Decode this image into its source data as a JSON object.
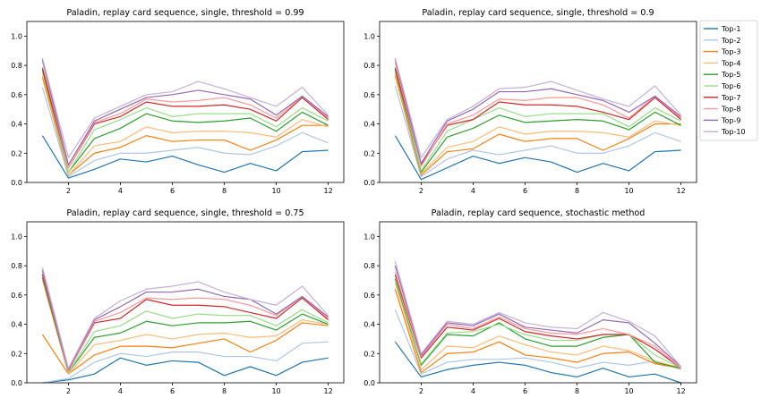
{
  "chart_data": [
    {
      "type": "line",
      "title": "Paladin, replay card sequence, single, threshold = 0.99",
      "x": [
        1,
        2,
        3,
        4,
        5,
        6,
        7,
        8,
        9,
        10,
        11,
        12
      ],
      "xticks": [
        2,
        4,
        6,
        8,
        10,
        12
      ],
      "yticks": [
        0.0,
        0.2,
        0.4,
        0.6,
        0.8,
        1.0
      ],
      "xlim": [
        0.4,
        12.6
      ],
      "ylim": [
        0.0,
        1.1
      ],
      "series": [
        {
          "name": "Top-1",
          "values": [
            0.32,
            0.03,
            0.09,
            0.16,
            0.14,
            0.18,
            0.12,
            0.07,
            0.13,
            0.08,
            0.21,
            0.22
          ]
        },
        {
          "name": "Top-2",
          "values": [
            0.65,
            0.04,
            0.15,
            0.2,
            0.2,
            0.22,
            0.24,
            0.2,
            0.19,
            0.25,
            0.34,
            0.27
          ]
        },
        {
          "name": "Top-3",
          "values": [
            0.72,
            0.05,
            0.2,
            0.24,
            0.32,
            0.28,
            0.29,
            0.29,
            0.22,
            0.29,
            0.39,
            0.39
          ]
        },
        {
          "name": "Top-4",
          "values": [
            0.75,
            0.05,
            0.25,
            0.28,
            0.38,
            0.34,
            0.35,
            0.35,
            0.34,
            0.31,
            0.43,
            0.38
          ]
        },
        {
          "name": "Top-5",
          "values": [
            0.77,
            0.07,
            0.3,
            0.37,
            0.47,
            0.42,
            0.41,
            0.42,
            0.44,
            0.35,
            0.48,
            0.39
          ]
        },
        {
          "name": "Top-6",
          "values": [
            0.79,
            0.07,
            0.36,
            0.43,
            0.51,
            0.45,
            0.47,
            0.47,
            0.47,
            0.38,
            0.51,
            0.42
          ]
        },
        {
          "name": "Top-7",
          "values": [
            0.78,
            0.1,
            0.4,
            0.45,
            0.55,
            0.52,
            0.52,
            0.53,
            0.5,
            0.42,
            0.58,
            0.43
          ]
        },
        {
          "name": "Top-8",
          "values": [
            0.83,
            0.1,
            0.41,
            0.47,
            0.57,
            0.55,
            0.56,
            0.58,
            0.53,
            0.44,
            0.59,
            0.44
          ]
        },
        {
          "name": "Top-9",
          "values": [
            0.84,
            0.12,
            0.42,
            0.5,
            0.58,
            0.6,
            0.63,
            0.6,
            0.57,
            0.46,
            0.59,
            0.45
          ]
        },
        {
          "name": "Top-10",
          "values": [
            0.85,
            0.17,
            0.44,
            0.52,
            0.6,
            0.62,
            0.69,
            0.64,
            0.58,
            0.52,
            0.65,
            0.46
          ]
        }
      ]
    },
    {
      "type": "line",
      "title": "Paladin, replay card sequence, single, threshold = 0.9",
      "x": [
        1,
        2,
        3,
        4,
        5,
        6,
        7,
        8,
        9,
        10,
        11,
        12
      ],
      "xticks": [
        2,
        4,
        6,
        8,
        10,
        12
      ],
      "yticks": [
        0.0,
        0.2,
        0.4,
        0.6,
        0.8,
        1.0
      ],
      "xlim": [
        0.4,
        12.6
      ],
      "ylim": [
        0.0,
        1.1
      ],
      "series": [
        {
          "name": "Top-1",
          "values": [
            0.32,
            0.02,
            0.1,
            0.18,
            0.13,
            0.17,
            0.14,
            0.07,
            0.13,
            0.08,
            0.21,
            0.22
          ]
        },
        {
          "name": "Top-2",
          "values": [
            0.66,
            0.04,
            0.16,
            0.22,
            0.19,
            0.22,
            0.25,
            0.2,
            0.2,
            0.25,
            0.34,
            0.28
          ]
        },
        {
          "name": "Top-3",
          "values": [
            0.73,
            0.05,
            0.21,
            0.23,
            0.33,
            0.28,
            0.3,
            0.3,
            0.22,
            0.3,
            0.4,
            0.4
          ]
        },
        {
          "name": "Top-4",
          "values": [
            0.75,
            0.06,
            0.24,
            0.28,
            0.38,
            0.33,
            0.35,
            0.35,
            0.34,
            0.31,
            0.42,
            0.39
          ]
        },
        {
          "name": "Top-5",
          "values": [
            0.77,
            0.07,
            0.31,
            0.37,
            0.46,
            0.41,
            0.42,
            0.43,
            0.42,
            0.36,
            0.48,
            0.39
          ]
        },
        {
          "name": "Top-6",
          "values": [
            0.79,
            0.08,
            0.35,
            0.43,
            0.51,
            0.45,
            0.47,
            0.47,
            0.47,
            0.38,
            0.51,
            0.42
          ]
        },
        {
          "name": "Top-7",
          "values": [
            0.78,
            0.12,
            0.39,
            0.43,
            0.55,
            0.53,
            0.53,
            0.52,
            0.48,
            0.43,
            0.58,
            0.43
          ]
        },
        {
          "name": "Top-8",
          "values": [
            0.82,
            0.11,
            0.4,
            0.46,
            0.57,
            0.56,
            0.58,
            0.58,
            0.53,
            0.44,
            0.59,
            0.44
          ]
        },
        {
          "name": "Top-9",
          "values": [
            0.84,
            0.13,
            0.42,
            0.5,
            0.62,
            0.62,
            0.64,
            0.6,
            0.56,
            0.48,
            0.59,
            0.45
          ]
        },
        {
          "name": "Top-10",
          "values": [
            0.85,
            0.17,
            0.43,
            0.52,
            0.64,
            0.65,
            0.69,
            0.63,
            0.57,
            0.52,
            0.66,
            0.46
          ]
        }
      ]
    },
    {
      "type": "line",
      "title": "Paladin, replay card sequence, single, threshold = 0.75",
      "x": [
        1,
        2,
        3,
        4,
        5,
        6,
        7,
        8,
        9,
        10,
        11,
        12
      ],
      "xticks": [
        2,
        4,
        6,
        8,
        10,
        12
      ],
      "yticks": [
        0.0,
        0.2,
        0.4,
        0.6,
        0.8,
        1.0
      ],
      "xlim": [
        0.4,
        12.6
      ],
      "ylim": [
        0.0,
        1.1
      ],
      "series": [
        {
          "name": "Top-1",
          "values": [
            0.0,
            0.02,
            0.06,
            0.17,
            0.12,
            0.15,
            0.14,
            0.05,
            0.11,
            0.05,
            0.14,
            0.17
          ]
        },
        {
          "name": "Top-2",
          "values": [
            0.0,
            0.03,
            0.14,
            0.2,
            0.18,
            0.21,
            0.21,
            0.18,
            0.18,
            0.15,
            0.27,
            0.28
          ]
        },
        {
          "name": "Top-3",
          "values": [
            0.33,
            0.06,
            0.19,
            0.25,
            0.25,
            0.24,
            0.27,
            0.3,
            0.21,
            0.29,
            0.41,
            0.39
          ]
        },
        {
          "name": "Top-4",
          "values": [
            0.7,
            0.06,
            0.26,
            0.29,
            0.33,
            0.3,
            0.33,
            0.34,
            0.31,
            0.32,
            0.43,
            0.4
          ]
        },
        {
          "name": "Top-5",
          "values": [
            0.72,
            0.07,
            0.31,
            0.34,
            0.42,
            0.39,
            0.41,
            0.41,
            0.42,
            0.36,
            0.47,
            0.4
          ]
        },
        {
          "name": "Top-6",
          "values": [
            0.75,
            0.07,
            0.35,
            0.39,
            0.49,
            0.44,
            0.47,
            0.46,
            0.46,
            0.39,
            0.5,
            0.41
          ]
        },
        {
          "name": "Top-7",
          "values": [
            0.74,
            0.08,
            0.41,
            0.44,
            0.57,
            0.53,
            0.53,
            0.52,
            0.48,
            0.44,
            0.58,
            0.43
          ]
        },
        {
          "name": "Top-8",
          "values": [
            0.76,
            0.08,
            0.42,
            0.48,
            0.58,
            0.57,
            0.58,
            0.57,
            0.53,
            0.46,
            0.59,
            0.44
          ]
        },
        {
          "name": "Top-9",
          "values": [
            0.77,
            0.09,
            0.43,
            0.52,
            0.62,
            0.62,
            0.64,
            0.59,
            0.57,
            0.47,
            0.59,
            0.45
          ]
        },
        {
          "name": "Top-10",
          "values": [
            0.79,
            0.1,
            0.44,
            0.56,
            0.64,
            0.66,
            0.69,
            0.62,
            0.57,
            0.53,
            0.66,
            0.46
          ]
        }
      ]
    },
    {
      "type": "line",
      "title": "Paladin, replay card sequence, stochastic method",
      "x": [
        1,
        2,
        3,
        4,
        5,
        6,
        7,
        8,
        9,
        10,
        11,
        12
      ],
      "xticks": [
        2,
        4,
        6,
        8,
        10,
        12
      ],
      "yticks": [
        0.0,
        0.2,
        0.4,
        0.6,
        0.8,
        1.0
      ],
      "xlim": [
        0.4,
        12.6
      ],
      "ylim": [
        0.0,
        1.1
      ],
      "series": [
        {
          "name": "Top-1",
          "values": [
            0.28,
            0.04,
            0.09,
            0.12,
            0.14,
            0.12,
            0.07,
            0.04,
            0.1,
            0.04,
            0.06,
            0.0
          ]
        },
        {
          "name": "Top-2",
          "values": [
            0.5,
            0.06,
            0.14,
            0.16,
            0.16,
            0.17,
            0.14,
            0.1,
            0.14,
            0.12,
            0.15,
            0.09
          ]
        },
        {
          "name": "Top-3",
          "values": [
            0.64,
            0.07,
            0.2,
            0.21,
            0.28,
            0.19,
            0.17,
            0.14,
            0.2,
            0.21,
            0.13,
            0.1
          ]
        },
        {
          "name": "Top-4",
          "values": [
            0.68,
            0.09,
            0.25,
            0.24,
            0.32,
            0.26,
            0.21,
            0.19,
            0.25,
            0.22,
            0.15,
            0.1
          ]
        },
        {
          "name": "Top-5",
          "values": [
            0.71,
            0.12,
            0.33,
            0.32,
            0.41,
            0.3,
            0.25,
            0.25,
            0.31,
            0.33,
            0.14,
            0.1
          ]
        },
        {
          "name": "Top-6",
          "values": [
            0.73,
            0.13,
            0.34,
            0.35,
            0.4,
            0.33,
            0.29,
            0.29,
            0.33,
            0.33,
            0.19,
            0.1
          ]
        },
        {
          "name": "Top-7",
          "values": [
            0.74,
            0.17,
            0.38,
            0.36,
            0.44,
            0.35,
            0.32,
            0.3,
            0.33,
            0.33,
            0.23,
            0.1
          ]
        },
        {
          "name": "Top-8",
          "values": [
            0.76,
            0.18,
            0.4,
            0.37,
            0.45,
            0.37,
            0.34,
            0.33,
            0.37,
            0.33,
            0.25,
            0.1
          ]
        },
        {
          "name": "Top-9",
          "values": [
            0.8,
            0.19,
            0.41,
            0.39,
            0.47,
            0.38,
            0.36,
            0.34,
            0.43,
            0.41,
            0.27,
            0.11
          ]
        },
        {
          "name": "Top-10",
          "values": [
            0.83,
            0.2,
            0.42,
            0.4,
            0.48,
            0.41,
            0.38,
            0.37,
            0.48,
            0.42,
            0.32,
            0.11
          ]
        }
      ]
    }
  ],
  "legend": {
    "placement": "top-right",
    "items": [
      "Top-1",
      "Top-2",
      "Top-3",
      "Top-4",
      "Top-5",
      "Top-6",
      "Top-7",
      "Top-8",
      "Top-9",
      "Top-10"
    ]
  },
  "colors": {
    "Top-1": "#1f77b4",
    "Top-2": "#aec7e8",
    "Top-3": "#ff7f0e",
    "Top-4": "#ffbb78",
    "Top-5": "#2ca02c",
    "Top-6": "#98df8a",
    "Top-7": "#d62728",
    "Top-8": "#ff9896",
    "Top-9": "#9467bd",
    "Top-10": "#c5b0d5"
  }
}
